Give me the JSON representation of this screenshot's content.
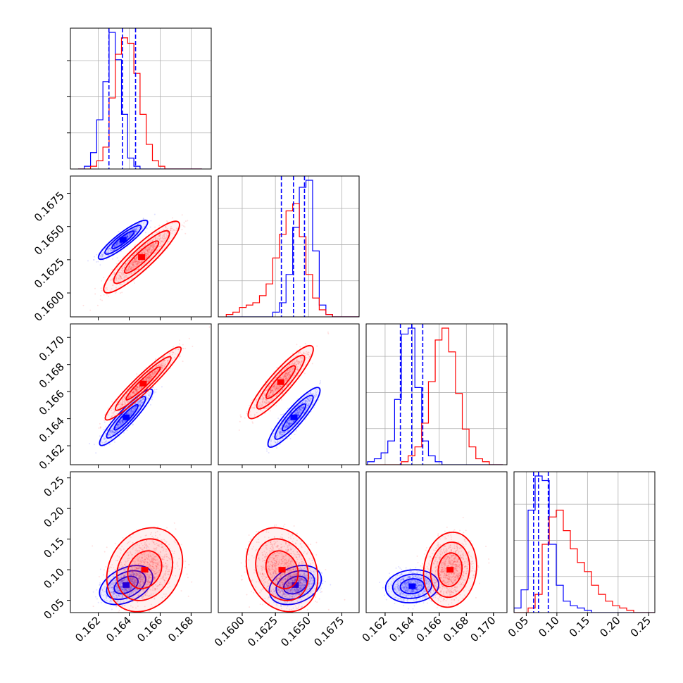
{
  "chart_data": {
    "type": "corner",
    "grid": true,
    "series": [
      {
        "name": "",
        "color": "#0000ff"
      },
      {
        "name": "",
        "color": "#ff0000"
      }
    ],
    "parameters": [
      {
        "range": [
          0.1602,
          0.1693
        ],
        "ticks": [
          "0.162",
          "0.164",
          "0.166",
          "0.168"
        ],
        "tick_values": [
          0.162,
          0.164,
          0.166,
          0.168
        ],
        "hist": {
          "bin_start": 0.1607,
          "bin_width": 0.0004,
          "blue": [
            0,
            1,
            6,
            18,
            32,
            50,
            40,
            20,
            4,
            1,
            0,
            0,
            0,
            0,
            0,
            0,
            0,
            0,
            0,
            0
          ],
          "red": [
            0,
            0,
            1,
            3,
            8,
            26,
            42,
            48,
            46,
            35,
            20,
            9,
            3,
            1,
            0,
            0,
            0,
            0,
            0,
            0
          ]
        },
        "quantiles_blue": [
          0.16269,
          0.16356,
          0.16441
        ]
      },
      {
        "range": [
          0.1582,
          0.1688
        ],
        "ticks": [
          "0.1600",
          "0.1625",
          "0.1650",
          "0.1675"
        ],
        "tick_values": [
          0.16,
          0.1625,
          0.165,
          0.1675
        ],
        "hist": {
          "bin_start": 0.1588,
          "bin_width": 0.0005,
          "blue": [
            0,
            0,
            0,
            0,
            0,
            0,
            0,
            2,
            6,
            18,
            38,
            55,
            58,
            28,
            5,
            1,
            0,
            0,
            0,
            0
          ],
          "red": [
            1,
            2,
            4,
            5,
            6,
            9,
            14,
            25,
            35,
            45,
            48,
            34,
            18,
            8,
            3,
            1,
            0,
            0,
            0,
            0
          ]
        },
        "quantiles_blue": [
          0.16295,
          0.16386,
          0.16469
        ]
      },
      {
        "range": [
          0.1606,
          0.171
        ],
        "ticks": [
          "0.162",
          "0.164",
          "0.166",
          "0.168",
          "0.170"
        ],
        "tick_values": [
          0.162,
          0.164,
          0.166,
          0.168,
          0.17
        ],
        "hist": {
          "bin_start": 0.1607,
          "bin_width": 0.0005,
          "blue": [
            1,
            2,
            4,
            8,
            22,
            44,
            46,
            26,
            8,
            3,
            1,
            0,
            0,
            0,
            0,
            0,
            0,
            0,
            0,
            0
          ],
          "red": [
            0,
            0,
            0,
            0,
            0,
            1,
            3,
            6,
            14,
            28,
            42,
            46,
            38,
            24,
            12,
            6,
            2,
            1,
            0,
            0
          ]
        },
        "quantiles_blue": [
          0.16313,
          0.16397,
          0.16478
        ]
      },
      {
        "range": [
          0.03,
          0.26
        ],
        "ticks": [
          "0.05",
          "0.10",
          "0.15",
          "0.20",
          "0.25"
        ],
        "tick_values": [
          0.05,
          0.1,
          0.15,
          0.2,
          0.25
        ],
        "hist": {
          "bin_start": 0.03,
          "bin_width": 0.0115,
          "blue": [
            2,
            10,
            45,
            60,
            58,
            30,
            12,
            5,
            3,
            2,
            1,
            0,
            0,
            0,
            0,
            0,
            0,
            0,
            0,
            0
          ],
          "red": [
            0,
            0,
            2,
            8,
            30,
            42,
            45,
            36,
            28,
            22,
            18,
            12,
            8,
            5,
            3,
            2,
            1,
            0,
            0,
            0
          ]
        },
        "quantiles_blue": [
          0.062,
          0.07,
          0.086
        ]
      }
    ],
    "pairs": [
      {
        "row": 1,
        "col": 0,
        "blue": {
          "mean": [
            0.1636,
            0.164
          ],
          "sd": [
            0.00065,
            0.0006
          ],
          "corr": 0.9
        },
        "red": {
          "mean": [
            0.1648,
            0.1627
          ],
          "sd": [
            0.001,
            0.0011
          ],
          "corr": 0.9
        }
      },
      {
        "row": 2,
        "col": 0,
        "blue": {
          "mean": [
            0.1638,
            0.1641
          ],
          "sd": [
            0.0007,
            0.00085
          ],
          "corr": 0.92
        },
        "red": {
          "mean": [
            0.1649,
            0.1666
          ],
          "sd": [
            0.001,
            0.0011
          ],
          "corr": 0.95
        }
      },
      {
        "row": 2,
        "col": 1,
        "blue": {
          "mean": [
            0.1639,
            0.1641
          ],
          "sd": [
            0.0008,
            0.0009
          ],
          "corr": 0.9
        },
        "red": {
          "mean": [
            0.1629,
            0.1667
          ],
          "sd": [
            0.001,
            0.0011
          ],
          "corr": 0.9
        }
      },
      {
        "row": 3,
        "col": 0,
        "blue": {
          "mean": [
            0.1638,
            0.075
          ],
          "sd": [
            0.0007,
            0.013
          ],
          "corr": 0.4
        },
        "red": {
          "mean": [
            0.165,
            0.1
          ],
          "sd": [
            0.001,
            0.028
          ],
          "corr": 0.2
        }
      },
      {
        "row": 3,
        "col": 1,
        "blue": {
          "mean": [
            0.164,
            0.075
          ],
          "sd": [
            0.0008,
            0.013
          ],
          "corr": 0.3
        },
        "red": {
          "mean": [
            0.163,
            0.1
          ],
          "sd": [
            0.0011,
            0.028
          ],
          "corr": -0.2
        }
      },
      {
        "row": 3,
        "col": 2,
        "blue": {
          "mean": [
            0.164,
            0.073
          ],
          "sd": [
            0.0008,
            0.011
          ],
          "corr": 0.1
        },
        "red": {
          "mean": [
            0.1668,
            0.1
          ],
          "sd": [
            0.0008,
            0.025
          ],
          "corr": 0.1
        }
      }
    ]
  }
}
